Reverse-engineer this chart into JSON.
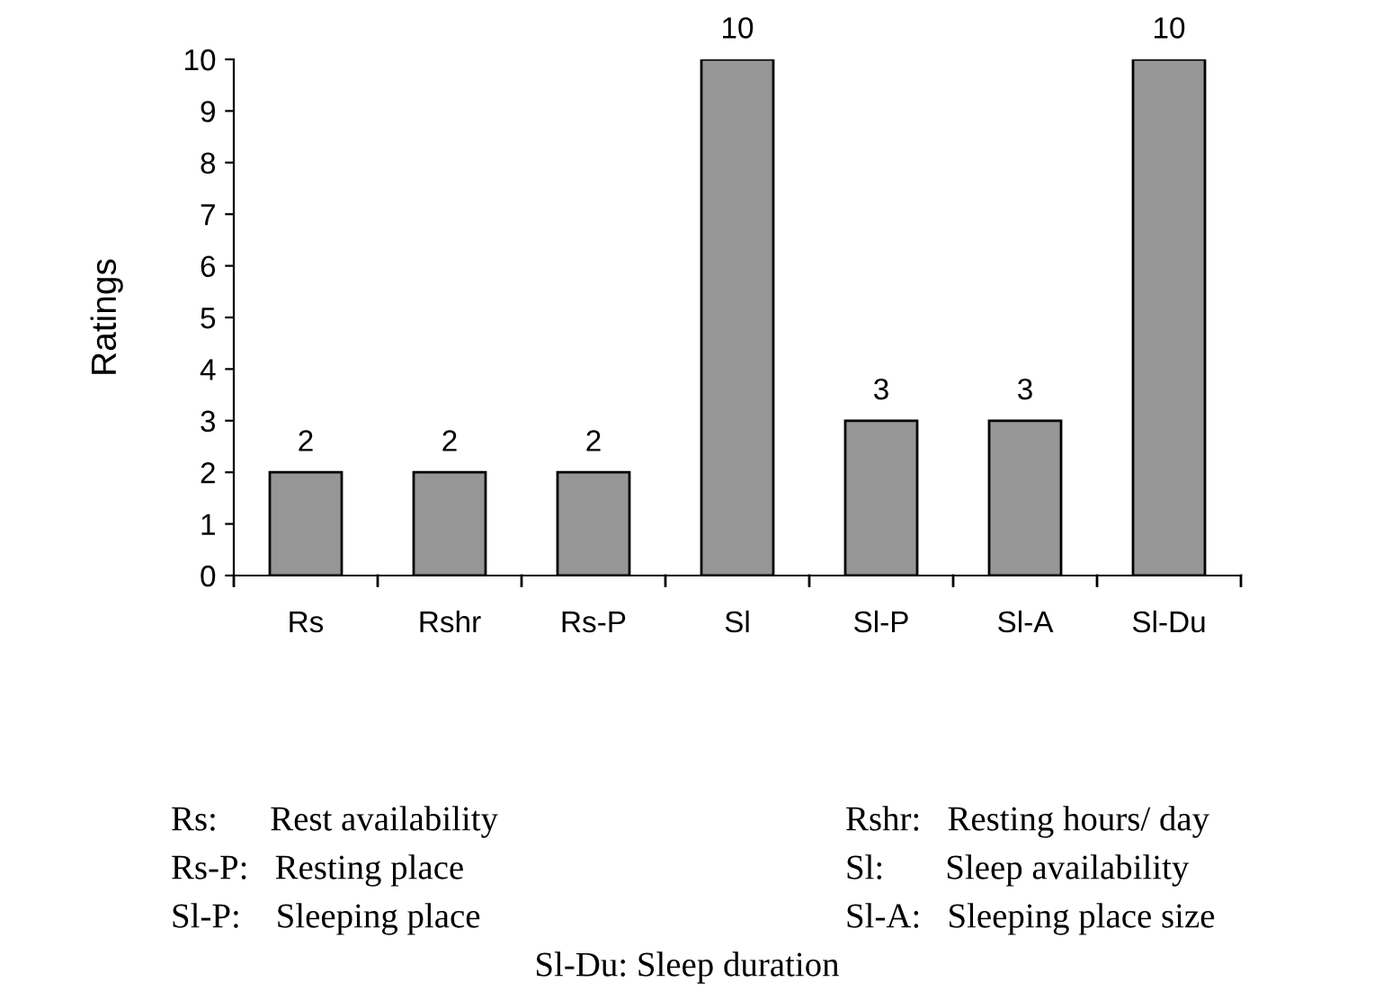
{
  "chart_data": {
    "type": "bar",
    "ylabel": "Ratings",
    "categories": [
      "Rs",
      "Rshr",
      "Rs-P",
      "Sl",
      "Sl-P",
      "Sl-A",
      "Sl-Du"
    ],
    "values": [
      2,
      2,
      2,
      10,
      3,
      3,
      10
    ],
    "color": "#969696",
    "ylim": [
      0,
      10
    ],
    "yticks": [
      0,
      1,
      2,
      3,
      4,
      5,
      6,
      7,
      8,
      9,
      10
    ],
    "grid": false,
    "data_labels": true,
    "annotations": [
      "Rs:      Rest availability",
      "Rshr:   Resting hours/ day",
      "Rs-P:   Resting place",
      "Sl:       Sleep availability",
      "Sl-P:    Sleeping place",
      "Sl-A:   Sleeping place size",
      "Sl-Du: Sleep duration"
    ]
  }
}
